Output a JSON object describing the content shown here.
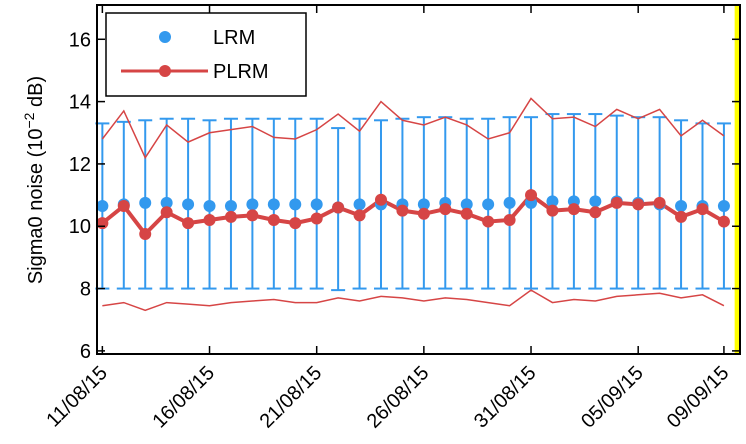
{
  "chart_data": {
    "type": "line",
    "ylabel": "Sigma0 noise (10",
    "ylabel_exponent": "−2",
    "ylabel_suffix": " dB)",
    "ylim": [
      5.9,
      17.1
    ],
    "yticks": [
      6,
      8,
      10,
      12,
      14,
      16
    ],
    "xlim": [
      10.75,
      40.75
    ],
    "xtick_positions": [
      11,
      16,
      21,
      26,
      31,
      36,
      40
    ],
    "xtick_labels": [
      "11/08/15",
      "16/08/15",
      "21/08/15",
      "26/08/15",
      "31/08/15",
      "05/09/15",
      "09/09/15"
    ],
    "highlight_span": [
      40.5,
      40.75
    ],
    "highlight_color": "#ffff00",
    "colors": {
      "lrm": "#3399ee",
      "plrm": "#d64545"
    },
    "legend": {
      "position": "top-left",
      "entries": [
        "LRM",
        "PLRM"
      ]
    },
    "series": [
      {
        "name": "LRM",
        "x": [
          11,
          12,
          13,
          14,
          15,
          16,
          17,
          18,
          19,
          20,
          21,
          22,
          23,
          24,
          25,
          26,
          27,
          28,
          29,
          30,
          31,
          32,
          33,
          34,
          35,
          36,
          37,
          38,
          39,
          40
        ],
        "values": [
          10.65,
          10.7,
          10.75,
          10.75,
          10.7,
          10.65,
          10.65,
          10.7,
          10.7,
          10.7,
          10.7,
          10.6,
          10.7,
          10.7,
          10.7,
          10.7,
          10.75,
          10.7,
          10.7,
          10.75,
          10.75,
          10.8,
          10.8,
          10.8,
          10.8,
          10.75,
          10.7,
          10.65,
          10.65,
          10.65
        ],
        "error_upper": [
          13.3,
          13.35,
          13.4,
          13.45,
          13.45,
          13.4,
          13.45,
          13.45,
          13.45,
          13.45,
          13.45,
          13.15,
          13.45,
          13.4,
          13.45,
          13.5,
          13.5,
          13.45,
          13.45,
          13.5,
          13.5,
          13.6,
          13.6,
          13.6,
          13.55,
          13.5,
          13.5,
          13.4,
          13.3,
          13.3
        ],
        "error_lower": [
          8.0,
          8.0,
          8.0,
          8.0,
          8.0,
          8.0,
          8.0,
          8.0,
          8.0,
          8.0,
          8.0,
          7.95,
          8.0,
          8.0,
          8.0,
          8.0,
          8.0,
          8.0,
          8.0,
          8.0,
          8.0,
          8.0,
          8.0,
          8.0,
          8.0,
          8.0,
          8.0,
          8.0,
          8.0,
          8.0
        ]
      },
      {
        "name": "PLRM",
        "x": [
          11,
          12,
          13,
          14,
          15,
          16,
          17,
          18,
          19,
          20,
          21,
          22,
          23,
          24,
          25,
          26,
          27,
          28,
          29,
          30,
          31,
          32,
          33,
          34,
          35,
          36,
          37,
          38,
          39,
          40
        ],
        "values": [
          10.1,
          10.65,
          9.75,
          10.45,
          10.1,
          10.2,
          10.3,
          10.35,
          10.2,
          10.1,
          10.25,
          10.6,
          10.35,
          10.85,
          10.5,
          10.4,
          10.55,
          10.4,
          10.15,
          10.2,
          11.0,
          10.5,
          10.55,
          10.45,
          10.75,
          10.7,
          10.75,
          10.3,
          10.55,
          10.15
        ],
        "upper": [
          12.8,
          13.7,
          12.2,
          13.25,
          12.7,
          13.0,
          13.1,
          13.2,
          12.85,
          12.8,
          13.1,
          13.6,
          13.05,
          14.0,
          13.4,
          13.25,
          13.5,
          13.25,
          12.8,
          13.0,
          14.1,
          13.45,
          13.5,
          13.2,
          13.75,
          13.45,
          13.75,
          12.9,
          13.4,
          12.9
        ],
        "lower": [
          7.45,
          7.55,
          7.3,
          7.55,
          7.5,
          7.45,
          7.55,
          7.6,
          7.65,
          7.55,
          7.55,
          7.7,
          7.6,
          7.75,
          7.7,
          7.6,
          7.7,
          7.65,
          7.55,
          7.45,
          7.95,
          7.55,
          7.65,
          7.6,
          7.75,
          7.8,
          7.85,
          7.7,
          7.8,
          7.45
        ]
      }
    ]
  }
}
